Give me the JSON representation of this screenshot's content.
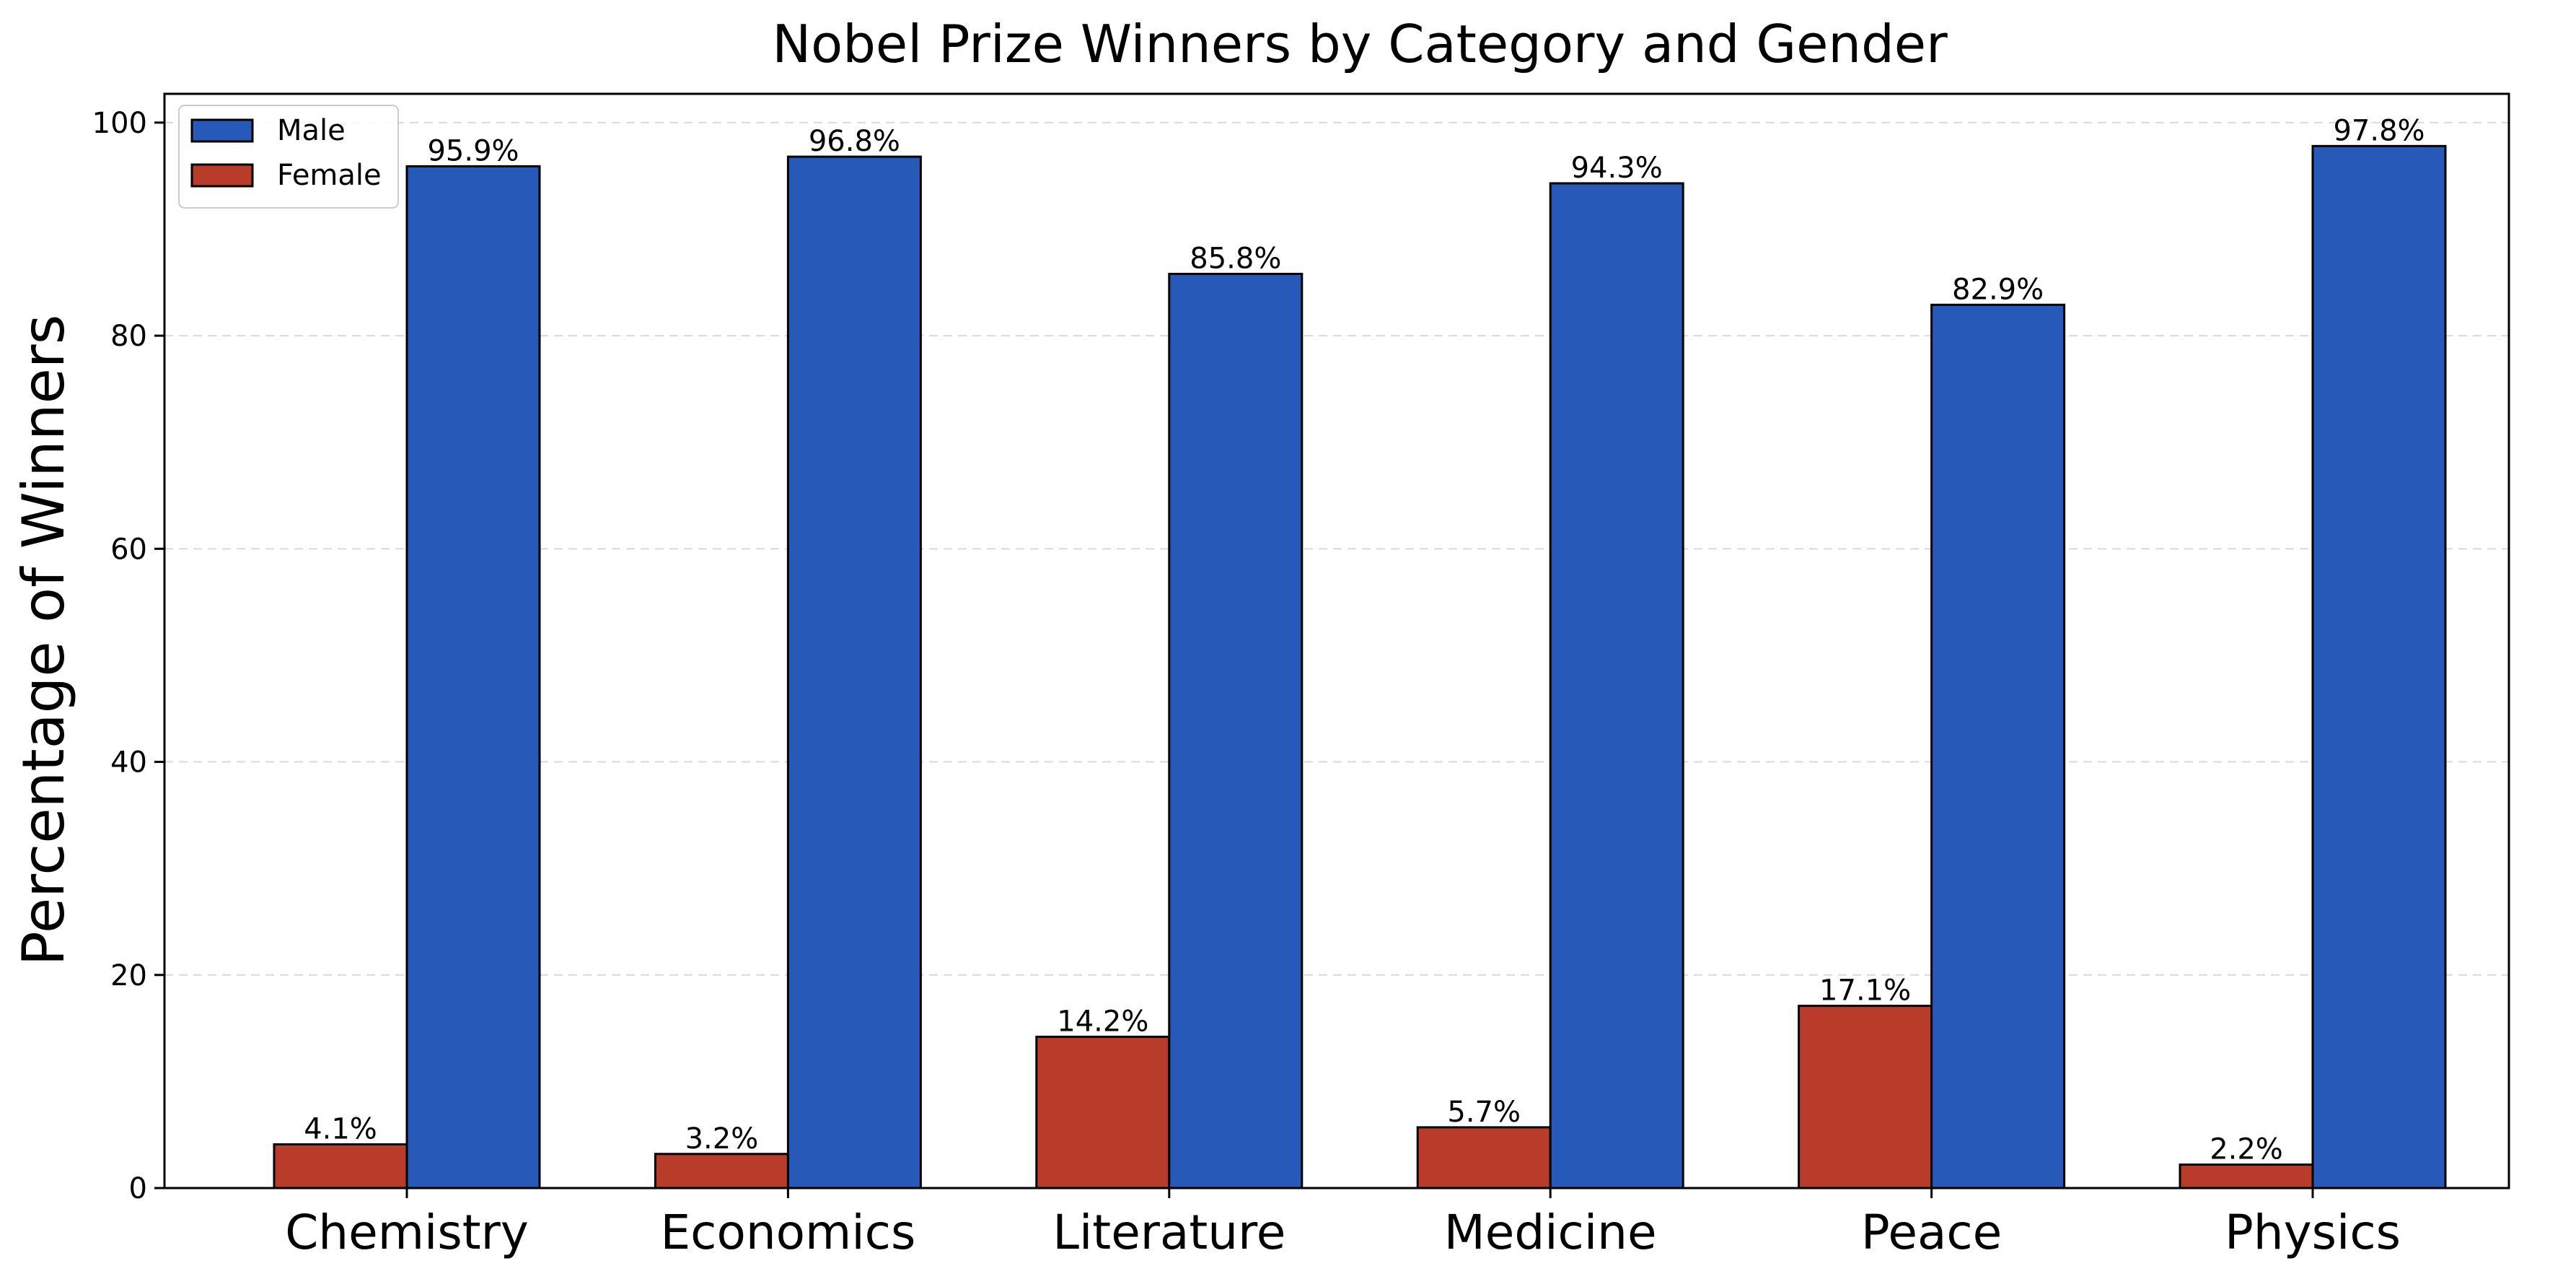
{
  "chart_data": {
    "type": "bar",
    "title": "Nobel Prize Winners by Category and Gender",
    "xlabel": "",
    "ylabel": "Percentage of Winners",
    "ylim": [
      0,
      102.7
    ],
    "yticks": [
      0,
      20,
      40,
      60,
      80,
      100
    ],
    "grid": "y-dashed",
    "legend_position": "top-left",
    "categories": [
      "Chemistry",
      "Economics",
      "Literature",
      "Medicine",
      "Peace",
      "Physics"
    ],
    "series": [
      {
        "name": "Female",
        "color": "#b83c29",
        "values": [
          4.1,
          3.2,
          14.2,
          5.7,
          17.1,
          2.2
        ],
        "labels": [
          "4.1%",
          "3.2%",
          "14.2%",
          "5.7%",
          "17.1%",
          "2.2%"
        ]
      },
      {
        "name": "Male",
        "color": "#2759b8",
        "values": [
          95.9,
          96.8,
          85.8,
          94.3,
          82.9,
          97.8
        ],
        "labels": [
          "95.9%",
          "96.8%",
          "85.8%",
          "94.3%",
          "82.9%",
          "97.8%"
        ]
      }
    ],
    "legend_order": [
      "Male",
      "Female"
    ]
  }
}
